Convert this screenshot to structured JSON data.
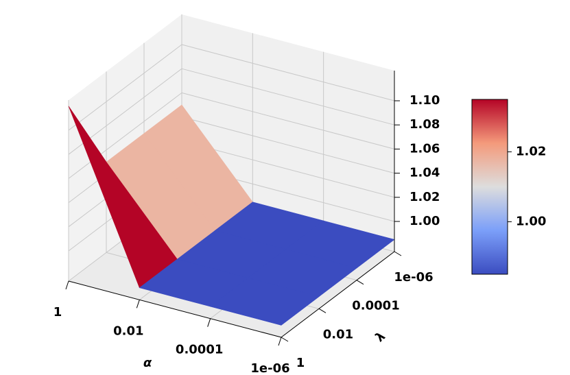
{
  "chart_data": {
    "type": "surface",
    "colormap": "coolwarm",
    "xlabel": "α",
    "ylabel": "λ",
    "xscale": "log",
    "yscale": "log",
    "x": [
      1,
      0.01,
      0.0001,
      1e-06
    ],
    "y": [
      1,
      0.01,
      0.0001,
      1e-06
    ],
    "z": [
      [
        1.12,
        1.05,
        1.05,
        1.05
      ],
      [
        0.985,
        0.985,
        0.985,
        0.985
      ],
      [
        0.985,
        0.985,
        0.985,
        0.985
      ],
      [
        0.985,
        0.985,
        0.985,
        0.985
      ]
    ],
    "xlim": [
      1,
      1e-06
    ],
    "ylim": [
      1,
      1e-06
    ],
    "zlim": [
      0.975,
      1.125
    ],
    "xticks": [
      1,
      0.01,
      0.0001,
      {
        "value": 1e-06,
        "label": "1e-06"
      }
    ],
    "yticks": [
      1,
      0.01,
      0.0001,
      {
        "value": 1e-06,
        "label": "1e-06"
      }
    ],
    "zticks": [
      {
        "value": 1.0,
        "label": "1.00"
      },
      {
        "value": 1.02,
        "label": "1.02"
      },
      {
        "value": 1.04,
        "label": "1.04"
      },
      {
        "value": 1.06,
        "label": "1.06"
      },
      {
        "value": 1.08,
        "label": "1.08"
      },
      {
        "value": 1.1,
        "label": "1.10"
      }
    ],
    "grid": true,
    "clim": [
      0.985,
      1.035
    ],
    "cticks": [
      {
        "value": 1.0,
        "label": "1.00"
      },
      {
        "value": 1.02,
        "label": "1.02"
      }
    ]
  }
}
